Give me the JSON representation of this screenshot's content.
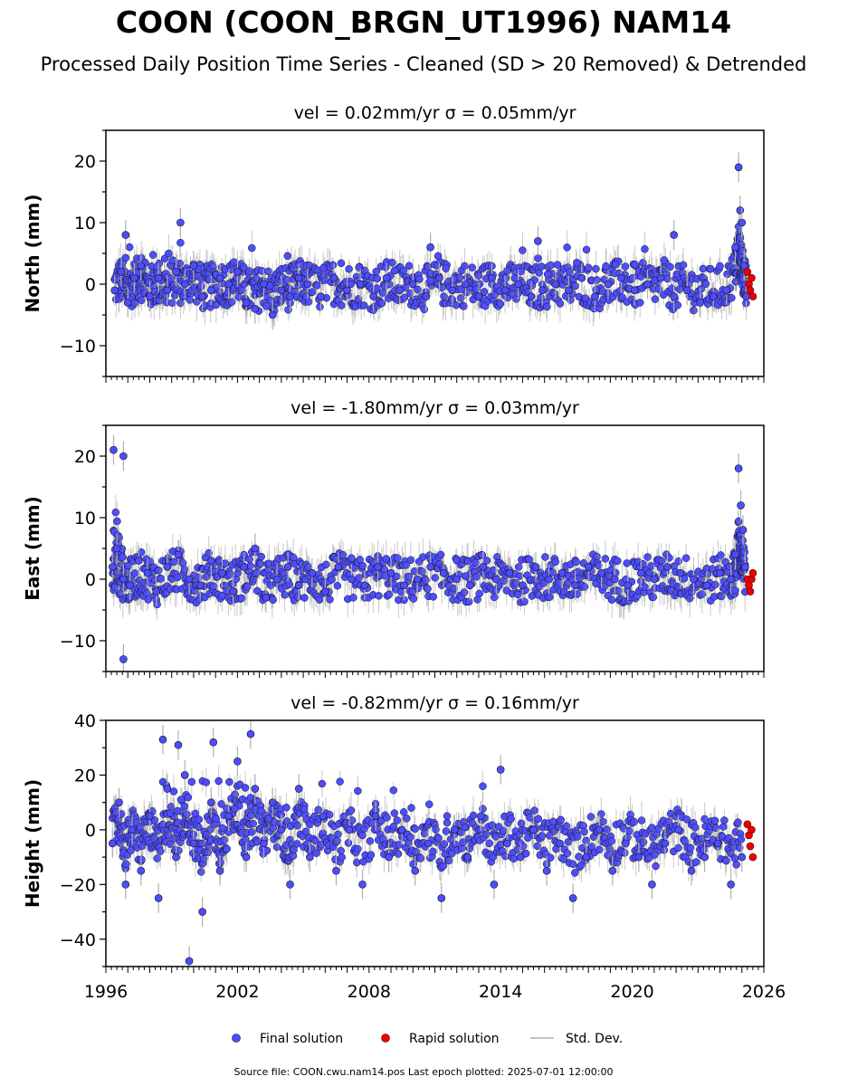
{
  "title": "COON (COON_BRGN_UT1996) NAM14",
  "subtitle": "Processed Daily Position Time Series - Cleaned (SD > 20 Removed) & Detrended",
  "legend": {
    "final": "Final solution",
    "rapid": "Rapid solution",
    "std": "Std. Dev."
  },
  "source": "Source file: COON.cwu.nam14.pos  Last epoch plotted: 2025-07-01 12:00:00",
  "colors": {
    "final_fill": "#4d4dff",
    "final_edge": "#111111",
    "rapid_fill": "#ee0000",
    "std": "#b0b0b0"
  },
  "chart_data": [
    {
      "type": "scatter",
      "title": "vel = 0.02mm/yr   σ = 0.05mm/yr",
      "ylabel": "North (mm)",
      "xlim": [
        1996,
        2026
      ],
      "ylim": [
        -15,
        25
      ],
      "yticks": [
        -10,
        0,
        10,
        20
      ],
      "ytick_labels": [
        "−10",
        "0",
        "10",
        "20"
      ],
      "final_series": {
        "name": "Final solution",
        "x": [
          1996.4,
          1996.7,
          1997.0,
          1997.3,
          1997.6,
          1998.0,
          1998.4,
          1998.8,
          1999.2,
          1999.6,
          2000.0,
          2000.4,
          2000.8,
          2001.2,
          2001.6,
          2002.0,
          2002.4,
          2002.8,
          2003.2,
          2003.6,
          2004.0,
          2004.4,
          2004.8,
          2005.2,
          2005.8,
          2006.4,
          2007.0,
          2007.6,
          2008.2,
          2008.8,
          2009.4,
          2010.0,
          2010.6,
          2011.2,
          2011.8,
          2012.4,
          2013.0,
          2013.6,
          2014.2,
          2014.8,
          2015.4,
          2015.9,
          2016.5,
          2017.1,
          2017.7,
          2018.3,
          2018.9,
          2019.5,
          2020.1,
          2020.7,
          2021.3,
          2021.9,
          2022.5,
          2023.1,
          2023.7,
          2024.3,
          2024.7,
          2024.85,
          2024.92,
          2025.0,
          2025.1,
          2025.2,
          1996.9,
          1999.4,
          2010.8,
          2015.7,
          2021.9
        ],
        "y": [
          -1,
          2,
          -3,
          1,
          3,
          -2,
          1,
          -1,
          2,
          0,
          3,
          -2,
          -1,
          1,
          0,
          2,
          -3,
          -4,
          0,
          -5,
          -1,
          -2,
          1,
          0,
          -2,
          1,
          -1,
          0,
          -2,
          1,
          -1,
          0,
          -2,
          1,
          -1,
          0,
          -2,
          1,
          -1,
          0,
          -2,
          -1,
          0,
          -1,
          1,
          -2,
          0,
          1,
          -1,
          0,
          1,
          -2,
          -1,
          -3,
          -2,
          -1,
          6,
          19,
          12,
          10,
          3,
          -2,
          8,
          10,
          6,
          7,
          8
        ]
      },
      "rapid_series": {
        "name": "Rapid solution",
        "x": [
          2025.25,
          2025.32,
          2025.38,
          2025.44,
          2025.5
        ],
        "y": [
          2,
          0,
          -1,
          1,
          -2
        ]
      }
    },
    {
      "type": "scatter",
      "title": "vel = -1.80mm/yr   σ = 0.03mm/yr",
      "ylabel": "East (mm)",
      "xlim": [
        1996,
        2026
      ],
      "ylim": [
        -15,
        25
      ],
      "yticks": [
        -10,
        0,
        10,
        20
      ],
      "ytick_labels": [
        "−10",
        "0",
        "10",
        "20"
      ],
      "final_series": {
        "name": "Final solution",
        "x": [
          1996.3,
          1996.5,
          1996.8,
          1997.1,
          1997.5,
          1997.9,
          1998.3,
          1998.8,
          1999.3,
          1999.8,
          2000.3,
          2000.8,
          2001.3,
          2001.8,
          2002.3,
          2002.8,
          2003.3,
          2003.8,
          2004.3,
          2004.8,
          2005.4,
          2006.0,
          2006.6,
          2007.2,
          2007.8,
          2008.4,
          2009.0,
          2009.6,
          2010.2,
          2010.8,
          2011.4,
          2012.0,
          2012.6,
          2013.2,
          2013.8,
          2014.4,
          2015.0,
          2015.6,
          2016.2,
          2016.8,
          2017.4,
          2018.0,
          2018.6,
          2019.2,
          2019.8,
          2020.4,
          2021.0,
          2021.6,
          2022.2,
          2022.8,
          2023.4,
          2024.0,
          2024.5,
          2024.7,
          2024.85,
          2024.95,
          2025.05,
          2025.15,
          1996.35,
          1996.8,
          1996.8
        ],
        "y": [
          2,
          5,
          0,
          -1,
          3,
          1,
          -2,
          2,
          4,
          0,
          -1,
          3,
          1,
          -2,
          2,
          5,
          -3,
          0,
          2,
          -1,
          1,
          -2,
          2,
          0,
          -1,
          2,
          1,
          -1,
          0,
          2,
          1,
          0,
          -1,
          2,
          0,
          1,
          -1,
          2,
          0,
          1,
          -1,
          2,
          1,
          0,
          -1,
          1,
          0,
          2,
          1,
          0,
          -1,
          1,
          0,
          4,
          18,
          12,
          8,
          2,
          21,
          20,
          -13
        ]
      },
      "rapid_series": {
        "name": "Rapid solution",
        "x": [
          2025.25,
          2025.32,
          2025.38,
          2025.44,
          2025.5
        ],
        "y": [
          0,
          -1,
          -2,
          0,
          1
        ]
      }
    },
    {
      "type": "scatter",
      "title": "vel = -0.82mm/yr   σ = 0.16mm/yr",
      "ylabel": "Height (mm)",
      "xlim": [
        1996,
        2026
      ],
      "ylim": [
        -50,
        40
      ],
      "yticks": [
        -40,
        -20,
        0,
        20,
        40
      ],
      "ytick_labels": [
        "−40",
        "−20",
        "0",
        "20",
        "40"
      ],
      "xticks": [
        1996,
        2002,
        2008,
        2014,
        2020,
        2026
      ],
      "xtick_labels": [
        "1996",
        "2002",
        "2008",
        "2014",
        "2020",
        "2026"
      ],
      "final_series": {
        "name": "Final solution",
        "x": [
          1996.3,
          1996.6,
          1996.9,
          1997.2,
          1997.6,
          1998.0,
          1998.4,
          1998.8,
          1999.2,
          1999.6,
          2000.0,
          2000.4,
          2000.8,
          2001.2,
          2001.6,
          2002.0,
          2002.4,
          2002.8,
          2003.2,
          2003.6,
          2004.0,
          2004.4,
          2004.8,
          2005.3,
          2005.9,
          2006.5,
          2007.1,
          2007.7,
          2008.3,
          2008.9,
          2009.5,
          2010.1,
          2010.7,
          2011.3,
          2011.9,
          2012.5,
          2013.1,
          2013.7,
          2014.3,
          2014.9,
          2015.5,
          2016.1,
          2016.7,
          2017.3,
          2017.9,
          2018.5,
          2019.1,
          2019.7,
          2020.3,
          2020.9,
          2021.5,
          2022.1,
          2022.7,
          2023.3,
          2023.9,
          2024.5,
          2025.0,
          1999.3,
          1998.6,
          2000.9,
          2002.6,
          2014.0,
          1999.8
        ],
        "y": [
          -5,
          10,
          -20,
          0,
          -15,
          5,
          -25,
          15,
          -10,
          20,
          -5,
          -30,
          10,
          -15,
          5,
          25,
          -10,
          15,
          -5,
          10,
          0,
          -20,
          15,
          -10,
          5,
          -15,
          0,
          -20,
          5,
          -10,
          0,
          -15,
          -5,
          -25,
          0,
          -10,
          5,
          -20,
          -5,
          -10,
          0,
          -15,
          -5,
          -25,
          -10,
          0,
          -15,
          -5,
          -10,
          -20,
          -5,
          0,
          -15,
          -10,
          -5,
          -20,
          -10,
          31,
          33,
          32,
          35,
          22,
          -48
        ]
      },
      "rapid_series": {
        "name": "Rapid solution",
        "x": [
          2025.25,
          2025.32,
          2025.38,
          2025.44,
          2025.5
        ],
        "y": [
          2,
          -2,
          -6,
          0,
          -10
        ]
      }
    }
  ]
}
